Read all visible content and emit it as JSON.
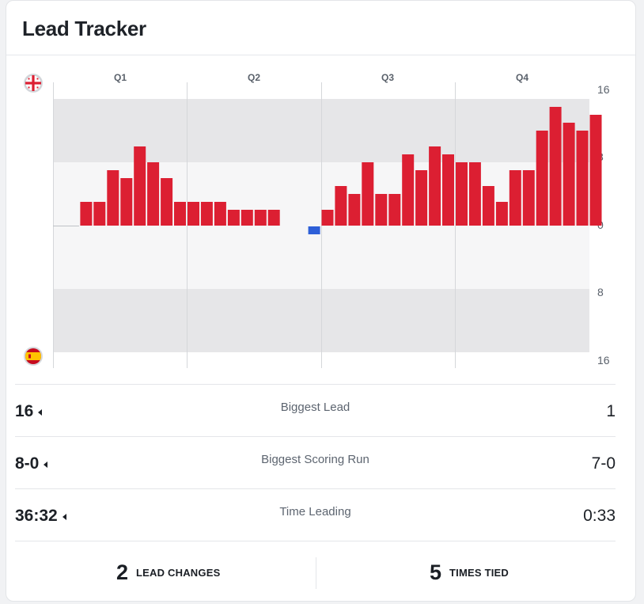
{
  "title": "Lead Tracker",
  "teams": {
    "top": {
      "flag": "georgia-flag-icon",
      "color": "#dc1f32"
    },
    "bottom": {
      "flag": "spain-flag-icon",
      "color": "#2d5fd8"
    }
  },
  "chart_data": {
    "type": "bar",
    "quarters": [
      "Q1",
      "Q2",
      "Q3",
      "Q4"
    ],
    "y_ticks_top": [
      "16",
      "8",
      "0"
    ],
    "y_ticks_bottom": [
      "8",
      "16"
    ],
    "ylim": [
      -16,
      16
    ],
    "values": [
      0,
      0,
      3,
      3,
      7,
      6,
      10,
      8,
      6,
      3,
      3,
      3,
      3,
      2,
      2,
      2,
      2,
      0,
      0,
      -1,
      2,
      5,
      4,
      8,
      4,
      4,
      9,
      7,
      10,
      9,
      8,
      8,
      5,
      3,
      7,
      7,
      12,
      15,
      13,
      12,
      14
    ],
    "positive_color": "#dc1f32",
    "negative_color": "#2d5fd8"
  },
  "stats": [
    {
      "left": "16",
      "label": "Biggest Lead",
      "right": "1"
    },
    {
      "left": "8-0",
      "label": "Biggest Scoring Run",
      "right": "7-0"
    },
    {
      "left": "36:32",
      "label": "Time Leading",
      "right": "0:33"
    }
  ],
  "footer": {
    "lead_changes": {
      "count": "2",
      "label": "LEAD CHANGES"
    },
    "times_tied": {
      "count": "5",
      "label": "TIMES TIED"
    }
  }
}
